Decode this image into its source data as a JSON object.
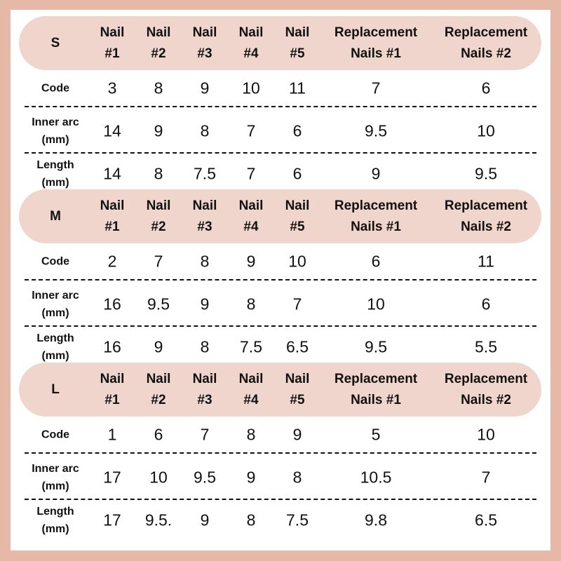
{
  "colors": {
    "border": "#e6b8a8",
    "header_band": "#f0d5cc"
  },
  "columns": [
    "Nail\n#1",
    "Nail\n#2",
    "Nail\n#3",
    "Nail\n#4",
    "Nail\n#5",
    "Replacement\nNails #1",
    "Replacement\nNails #2"
  ],
  "sizes": [
    {
      "size": "S",
      "rows": [
        {
          "label": "Code",
          "values": [
            "3",
            "8",
            "9",
            "10",
            "11",
            "7",
            "6"
          ]
        },
        {
          "label": "Inner arc\n(mm)",
          "values": [
            "14",
            "9",
            "8",
            "7",
            "6",
            "9.5",
            "10"
          ]
        },
        {
          "label": "Length\n(mm)",
          "values": [
            "14",
            "8",
            "7.5",
            "7",
            "6",
            "9",
            "9.5"
          ]
        }
      ]
    },
    {
      "size": "M",
      "rows": [
        {
          "label": "Code",
          "values": [
            "2",
            "7",
            "8",
            "9",
            "10",
            "6",
            "11"
          ]
        },
        {
          "label": "Inner arc\n(mm)",
          "values": [
            "16",
            "9.5",
            "9",
            "8",
            "7",
            "10",
            "6"
          ]
        },
        {
          "label": "Length\n(mm)",
          "values": [
            "16",
            "9",
            "8",
            "7.5",
            "6.5",
            "9.5",
            "5.5"
          ]
        }
      ]
    },
    {
      "size": "L",
      "rows": [
        {
          "label": "Code",
          "values": [
            "1",
            "6",
            "7",
            "8",
            "9",
            "5",
            "10"
          ]
        },
        {
          "label": "Inner arc\n(mm)",
          "values": [
            "17",
            "10",
            "9.5",
            "9",
            "8",
            "10.5",
            "7"
          ]
        },
        {
          "label": "Length\n(mm)",
          "values": [
            "17",
            "9.5.",
            "9",
            "8",
            "7.5",
            "9.8",
            "6.5"
          ]
        }
      ]
    }
  ]
}
